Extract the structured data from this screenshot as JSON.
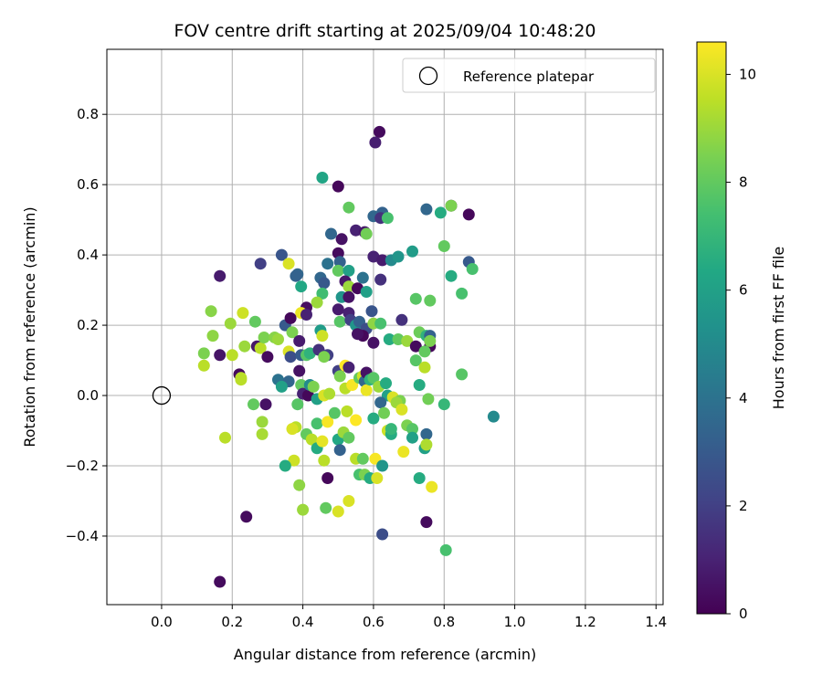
{
  "chart_data": {
    "type": "scatter",
    "title": "FOV centre drift starting at 2025/09/04 10:48:20",
    "xlabel": "Angular distance from reference (arcmin)",
    "ylabel": "Rotation from reference (arcmin)",
    "xlim": [
      -0.155,
      1.42
    ],
    "ylim": [
      -0.595,
      0.985
    ],
    "xticks": [
      0.0,
      0.2,
      0.4,
      0.6,
      0.8,
      1.0,
      1.2,
      1.4
    ],
    "xtick_labels": [
      "0.0",
      "0.2",
      "0.4",
      "0.6",
      "0.8",
      "1.0",
      "1.2",
      "1.4"
    ],
    "yticks": [
      -0.4,
      -0.2,
      0.0,
      0.2,
      0.4,
      0.6,
      0.8
    ],
    "ytick_labels": [
      "−0.4",
      "−0.2",
      "0.0",
      "0.2",
      "0.4",
      "0.6",
      "0.8"
    ],
    "grid": true,
    "legend": {
      "position": "top-right",
      "entries": [
        "Reference platepar"
      ]
    },
    "reference_point": {
      "label": "Reference platepar",
      "x": 0.0,
      "y": 0.0
    },
    "colorbar": {
      "label": "Hours from first FF file",
      "colormap": "viridis",
      "range": [
        0,
        10.6
      ],
      "ticks": [
        0,
        2,
        4,
        6,
        8,
        10
      ],
      "tick_labels": [
        "0",
        "2",
        "4",
        "6",
        "8",
        "10"
      ]
    },
    "points": [
      [
        0.617,
        0.75,
        0.3
      ],
      [
        0.605,
        0.72,
        0.9
      ],
      [
        0.5,
        0.595,
        0.2
      ],
      [
        0.455,
        0.62,
        6.2
      ],
      [
        0.82,
        0.54,
        0.3
      ],
      [
        0.87,
        0.515,
        0.2
      ],
      [
        0.75,
        0.53,
        3.5
      ],
      [
        0.79,
        0.52,
        6.5
      ],
      [
        0.82,
        0.54,
        8.5
      ],
      [
        0.625,
        0.52,
        3.3
      ],
      [
        0.6,
        0.51,
        3.5
      ],
      [
        0.62,
        0.505,
        1.5
      ],
      [
        0.64,
        0.505,
        7.5
      ],
      [
        0.53,
        0.535,
        8.0
      ],
      [
        0.48,
        0.46,
        3.5
      ],
      [
        0.51,
        0.445,
        0.5
      ],
      [
        0.55,
        0.47,
        1.0
      ],
      [
        0.575,
        0.465,
        0.7
      ],
      [
        0.58,
        0.46,
        8.3
      ],
      [
        0.5,
        0.405,
        0.3
      ],
      [
        0.505,
        0.38,
        3.3
      ],
      [
        0.47,
        0.375,
        4.0
      ],
      [
        0.6,
        0.395,
        1.0
      ],
      [
        0.625,
        0.385,
        0.8
      ],
      [
        0.65,
        0.385,
        5.0
      ],
      [
        0.67,
        0.395,
        5.5
      ],
      [
        0.71,
        0.41,
        5.8
      ],
      [
        0.8,
        0.425,
        8.0
      ],
      [
        0.87,
        0.38,
        3.0
      ],
      [
        0.88,
        0.36,
        7.5
      ],
      [
        0.82,
        0.34,
        6.5
      ],
      [
        0.85,
        0.29,
        7.5
      ],
      [
        0.76,
        0.27,
        8.0
      ],
      [
        0.72,
        0.275,
        7.8
      ],
      [
        0.68,
        0.215,
        1.5
      ],
      [
        0.34,
        0.4,
        2.8
      ],
      [
        0.36,
        0.375,
        10.0
      ],
      [
        0.385,
        0.345,
        3.5
      ],
      [
        0.38,
        0.34,
        3.3
      ],
      [
        0.395,
        0.31,
        6.3
      ],
      [
        0.28,
        0.375,
        2.0
      ],
      [
        0.165,
        0.34,
        0.8
      ],
      [
        0.45,
        0.335,
        3.5
      ],
      [
        0.46,
        0.32,
        2.9
      ],
      [
        0.5,
        0.355,
        8.0
      ],
      [
        0.53,
        0.355,
        6.0
      ],
      [
        0.52,
        0.325,
        0.7
      ],
      [
        0.53,
        0.31,
        9.0
      ],
      [
        0.57,
        0.335,
        4.0
      ],
      [
        0.555,
        0.305,
        0.2
      ],
      [
        0.58,
        0.295,
        6.0
      ],
      [
        0.62,
        0.33,
        1.5
      ],
      [
        0.595,
        0.24,
        2.8
      ],
      [
        0.51,
        0.28,
        5.5
      ],
      [
        0.53,
        0.28,
        0.5
      ],
      [
        0.455,
        0.29,
        7.3
      ],
      [
        0.44,
        0.265,
        9.0
      ],
      [
        0.41,
        0.25,
        0.4
      ],
      [
        0.395,
        0.235,
        10.3
      ],
      [
        0.41,
        0.23,
        1.0
      ],
      [
        0.5,
        0.245,
        0.8
      ],
      [
        0.53,
        0.235,
        1.0
      ],
      [
        0.505,
        0.21,
        7.8
      ],
      [
        0.535,
        0.215,
        2.0
      ],
      [
        0.55,
        0.2,
        5.5
      ],
      [
        0.56,
        0.21,
        3.3
      ],
      [
        0.58,
        0.19,
        2.5
      ],
      [
        0.6,
        0.205,
        8.8
      ],
      [
        0.62,
        0.205,
        7.5
      ],
      [
        0.57,
        0.17,
        0.2
      ],
      [
        0.555,
        0.175,
        0.5
      ],
      [
        0.6,
        0.15,
        0.5
      ],
      [
        0.645,
        0.16,
        6.5
      ],
      [
        0.67,
        0.16,
        8.0
      ],
      [
        0.695,
        0.155,
        9.0
      ],
      [
        0.72,
        0.14,
        0.3
      ],
      [
        0.73,
        0.18,
        8.2
      ],
      [
        0.75,
        0.17,
        6.8
      ],
      [
        0.76,
        0.17,
        3.3
      ],
      [
        0.76,
        0.14,
        0.2
      ],
      [
        0.76,
        0.155,
        8.5
      ],
      [
        0.745,
        0.125,
        8.0
      ],
      [
        0.14,
        0.24,
        8.7
      ],
      [
        0.12,
        0.12,
        8.5
      ],
      [
        0.12,
        0.085,
        9.5
      ],
      [
        0.145,
        0.17,
        8.8
      ],
      [
        0.165,
        0.115,
        0.6
      ],
      [
        0.195,
        0.205,
        9.0
      ],
      [
        0.2,
        0.115,
        9.5
      ],
      [
        0.22,
        0.06,
        0.3
      ],
      [
        0.225,
        0.045,
        9.5
      ],
      [
        0.23,
        0.235,
        9.8
      ],
      [
        0.235,
        0.14,
        9.0
      ],
      [
        0.265,
        0.21,
        8.0
      ],
      [
        0.27,
        0.14,
        0.7
      ],
      [
        0.28,
        0.135,
        9.5
      ],
      [
        0.29,
        0.165,
        8.5
      ],
      [
        0.3,
        0.11,
        0.3
      ],
      [
        0.32,
        0.165,
        8.7
      ],
      [
        0.33,
        0.16,
        9.0
      ],
      [
        0.35,
        0.2,
        3.0
      ],
      [
        0.365,
        0.22,
        0.2
      ],
      [
        0.37,
        0.18,
        8.5
      ],
      [
        0.36,
        0.125,
        10.0
      ],
      [
        0.365,
        0.11,
        2.5
      ],
      [
        0.39,
        0.155,
        0.8
      ],
      [
        0.395,
        0.115,
        3.0
      ],
      [
        0.41,
        0.115,
        7.8
      ],
      [
        0.42,
        0.12,
        6.8
      ],
      [
        0.445,
        0.13,
        1.5
      ],
      [
        0.45,
        0.185,
        5.8
      ],
      [
        0.455,
        0.17,
        9.8
      ],
      [
        0.47,
        0.115,
        2.0
      ],
      [
        0.46,
        0.11,
        8.5
      ],
      [
        0.33,
        0.045,
        4.0
      ],
      [
        0.36,
        0.04,
        3.5
      ],
      [
        0.34,
        0.025,
        6.0
      ],
      [
        0.39,
        0.07,
        0.5
      ],
      [
        0.395,
        0.03,
        8.0
      ],
      [
        0.4,
        0.005,
        1.0
      ],
      [
        0.415,
        0.0,
        0.2
      ],
      [
        0.42,
        0.03,
        5.0
      ],
      [
        0.43,
        0.025,
        8.5
      ],
      [
        0.44,
        -0.01,
        6.0
      ],
      [
        0.46,
        0.0,
        10.0
      ],
      [
        0.475,
        0.005,
        9.3
      ],
      [
        0.5,
        0.07,
        2.0
      ],
      [
        0.505,
        0.055,
        8.5
      ],
      [
        0.52,
        0.02,
        9.5
      ],
      [
        0.52,
        0.085,
        10.6
      ],
      [
        0.53,
        0.08,
        1.0
      ],
      [
        0.54,
        0.03,
        10.5
      ],
      [
        0.56,
        0.05,
        8.0
      ],
      [
        0.57,
        0.055,
        9.8
      ],
      [
        0.575,
        0.04,
        3.5
      ],
      [
        0.58,
        0.065,
        0.5
      ],
      [
        0.58,
        0.015,
        10.3
      ],
      [
        0.59,
        0.045,
        6.8
      ],
      [
        0.6,
        0.05,
        7.8
      ],
      [
        0.615,
        0.025,
        9.0
      ],
      [
        0.635,
        0.035,
        6.5
      ],
      [
        0.64,
        0.0,
        6.0
      ],
      [
        0.655,
        -0.005,
        10.0
      ],
      [
        0.62,
        -0.02,
        3.5
      ],
      [
        0.675,
        -0.015,
        8.5
      ],
      [
        0.72,
        0.1,
        7.8
      ],
      [
        0.73,
        0.03,
        6.5
      ],
      [
        0.745,
        0.08,
        9.5
      ],
      [
        0.755,
        -0.01,
        8.3
      ],
      [
        0.8,
        -0.025,
        7.0
      ],
      [
        0.85,
        0.06,
        7.8
      ],
      [
        0.94,
        -0.06,
        5.0
      ],
      [
        0.225,
        0.05,
        9.5
      ],
      [
        0.26,
        -0.025,
        8.0
      ],
      [
        0.295,
        -0.025,
        0.5
      ],
      [
        0.285,
        -0.075,
        9.0
      ],
      [
        0.285,
        -0.11,
        9.2
      ],
      [
        0.18,
        -0.12,
        9.5
      ],
      [
        0.385,
        -0.025,
        7.8
      ],
      [
        0.38,
        -0.09,
        9.5
      ],
      [
        0.37,
        -0.095,
        10.0
      ],
      [
        0.375,
        -0.185,
        9.8
      ],
      [
        0.35,
        -0.2,
        6.5
      ],
      [
        0.39,
        -0.255,
        8.8
      ],
      [
        0.4,
        -0.325,
        9.0
      ],
      [
        0.41,
        -0.11,
        8.0
      ],
      [
        0.425,
        -0.125,
        9.5
      ],
      [
        0.44,
        -0.08,
        7.5
      ],
      [
        0.44,
        -0.15,
        6.5
      ],
      [
        0.455,
        -0.13,
        10.2
      ],
      [
        0.46,
        -0.185,
        9.5
      ],
      [
        0.465,
        -0.32,
        8.0
      ],
      [
        0.47,
        -0.075,
        10.5
      ],
      [
        0.47,
        -0.235,
        0.2
      ],
      [
        0.49,
        -0.05,
        7.8
      ],
      [
        0.5,
        -0.125,
        6.3
      ],
      [
        0.505,
        -0.155,
        3.3
      ],
      [
        0.515,
        -0.105,
        9.0
      ],
      [
        0.5,
        -0.33,
        10.0
      ],
      [
        0.525,
        -0.045,
        9.5
      ],
      [
        0.53,
        -0.12,
        8.0
      ],
      [
        0.53,
        -0.3,
        10.0
      ],
      [
        0.55,
        -0.07,
        10.6
      ],
      [
        0.55,
        -0.18,
        9.5
      ],
      [
        0.56,
        -0.225,
        7.5
      ],
      [
        0.57,
        -0.18,
        8.0
      ],
      [
        0.575,
        -0.225,
        8.5
      ],
      [
        0.59,
        -0.235,
        6.5
      ],
      [
        0.605,
        -0.18,
        10.5
      ],
      [
        0.61,
        -0.235,
        10.0
      ],
      [
        0.6,
        -0.065,
        6.5
      ],
      [
        0.625,
        -0.2,
        5.5
      ],
      [
        0.63,
        -0.05,
        8.3
      ],
      [
        0.64,
        -0.1,
        9.8
      ],
      [
        0.65,
        -0.11,
        6.5
      ],
      [
        0.65,
        -0.095,
        7.0
      ],
      [
        0.665,
        -0.02,
        9.0
      ],
      [
        0.68,
        -0.04,
        10.0
      ],
      [
        0.685,
        -0.16,
        10.3
      ],
      [
        0.695,
        -0.085,
        8.5
      ],
      [
        0.71,
        -0.095,
        7.8
      ],
      [
        0.71,
        -0.12,
        6.0
      ],
      [
        0.73,
        -0.235,
        6.5
      ],
      [
        0.75,
        -0.11,
        3.5
      ],
      [
        0.745,
        -0.15,
        6.0
      ],
      [
        0.75,
        -0.14,
        9.3
      ],
      [
        0.75,
        -0.36,
        0.3
      ],
      [
        0.765,
        -0.26,
        10.3
      ],
      [
        0.805,
        -0.44,
        7.5
      ],
      [
        0.625,
        -0.395,
        2.5
      ],
      [
        0.24,
        -0.345,
        0.3
      ],
      [
        0.165,
        -0.53,
        0.3
      ]
    ]
  }
}
